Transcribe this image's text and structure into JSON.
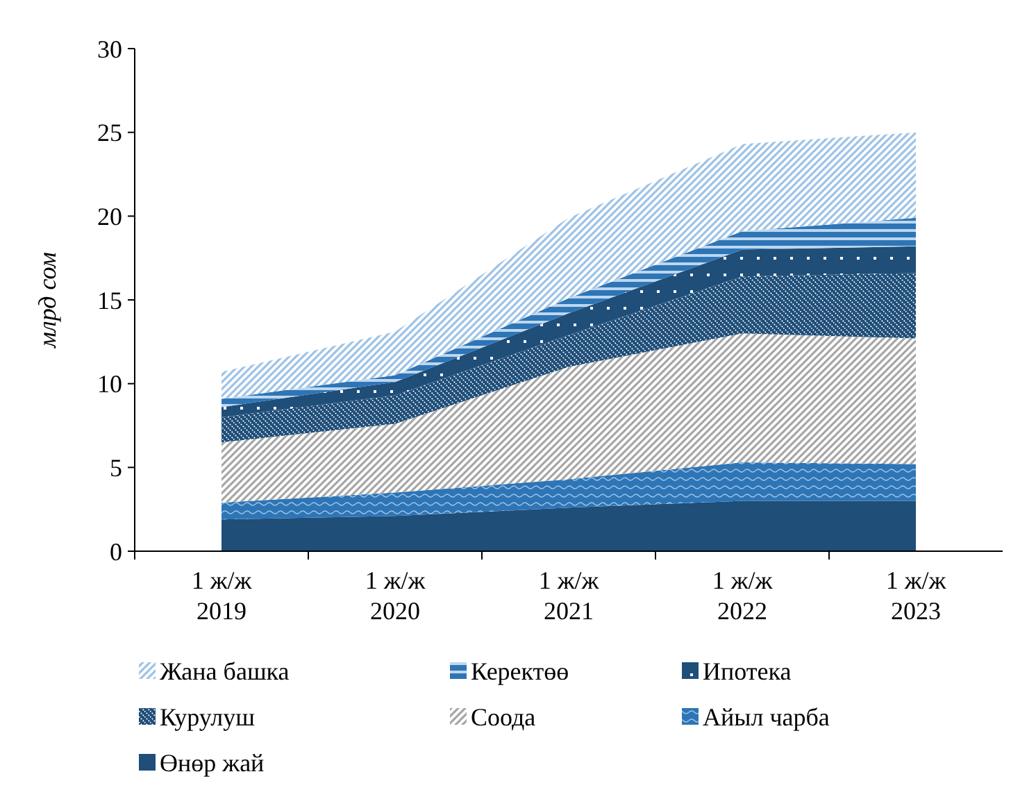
{
  "chart_data": {
    "type": "area",
    "stacked": true,
    "ylabel": "млрд сом",
    "categories": [
      "1 ж/ж\n2019",
      "1 ж/ж\n2020",
      "1 ж/ж\n2021",
      "1 ж/ж\n2022",
      "1 ж/ж\n2023"
    ],
    "ylim": [
      0,
      30
    ],
    "yticks": [
      0,
      5,
      10,
      15,
      20,
      25,
      30
    ],
    "grid": false,
    "legend": "bottom",
    "series": [
      {
        "name": "Өнөр жай",
        "color": "#1f4e79",
        "values": [
          1.9,
          2.1,
          2.6,
          3.0,
          3.0
        ]
      },
      {
        "name": "Айыл чарба",
        "color": "#2e75b6",
        "values": [
          1.0,
          1.4,
          1.7,
          2.3,
          2.2
        ]
      },
      {
        "name": "Соода",
        "color": "#a6a6a6",
        "values": [
          3.6,
          4.1,
          6.7,
          7.7,
          7.5
        ]
      },
      {
        "name": "Курулуш",
        "color": "#1f4e79",
        "values": [
          1.5,
          1.7,
          1.9,
          3.4,
          3.9
        ]
      },
      {
        "name": "Ипотека",
        "color": "#1f4e79",
        "values": [
          0.6,
          0.8,
          1.3,
          1.6,
          1.6
        ]
      },
      {
        "name": "Керектөө",
        "color": "#2e75b6",
        "values": [
          0.5,
          0.4,
          0.9,
          1.1,
          1.7
        ]
      },
      {
        "name": "Жана башка",
        "color": "#9dc3e6",
        "values": [
          1.6,
          2.6,
          4.8,
          5.2,
          5.1
        ]
      }
    ]
  }
}
